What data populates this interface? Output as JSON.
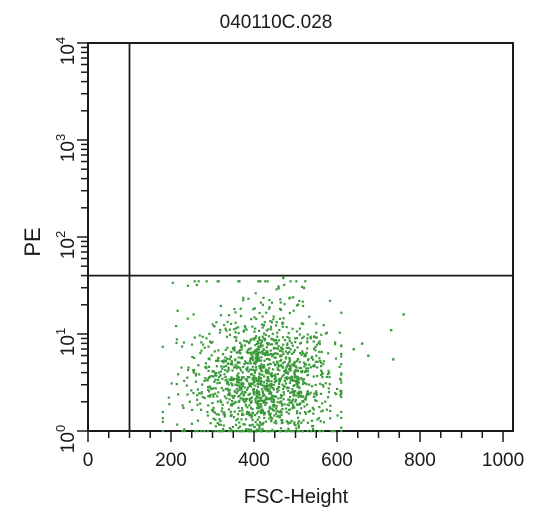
{
  "chart_data": {
    "type": "scatter",
    "title": "040110C.028",
    "xlabel": "FSC-Height",
    "ylabel": "PE",
    "xlim": [
      0,
      1024
    ],
    "ylim": [
      1,
      10000
    ],
    "yscale": "log",
    "x_ticks": [
      0,
      200,
      400,
      600,
      800,
      1000
    ],
    "x_tick_labels": [
      "0",
      "200",
      "400",
      "600",
      "800",
      "1000"
    ],
    "y_ticks": [
      1,
      10,
      100,
      1000,
      10000
    ],
    "y_tick_labels": [
      {
        "base": "10",
        "exp": "0"
      },
      {
        "base": "10",
        "exp": "1"
      },
      {
        "base": "10",
        "exp": "2"
      },
      {
        "base": "10",
        "exp": "3"
      },
      {
        "base": "10",
        "exp": "4"
      }
    ],
    "gates": {
      "vertical_x": 100,
      "horizontal_y": 40
    },
    "point_color": "#3a9a3a",
    "point_count": 1500,
    "cluster": {
      "center": [
        420,
        3.0
      ],
      "x_range": [
        180,
        610
      ],
      "y_range": [
        1,
        35
      ],
      "outliers": [
        [
          640,
          7
        ],
        [
          660,
          8
        ],
        [
          675,
          6
        ],
        [
          730,
          11
        ],
        [
          735,
          5.5
        ],
        [
          760,
          16
        ],
        [
          470,
          38
        ],
        [
          520,
          30
        ]
      ]
    },
    "grid": false,
    "legend": "none"
  }
}
